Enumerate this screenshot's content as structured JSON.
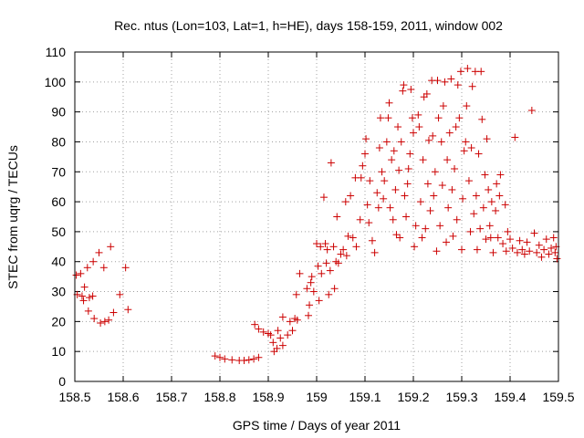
{
  "chart_data": {
    "type": "scatter",
    "title": "Rec. ntus (Lon=103, Lat=1, h=HE), days 158-159, 2011, window 002",
    "xlabel": "GPS time / Days of year 2011",
    "ylabel": "STEC from uqrg / TECUs",
    "xlim": [
      158.5,
      159.5
    ],
    "ylim": [
      0,
      110
    ],
    "xticks": [
      "158.5",
      "158.6",
      "158.7",
      "158.8",
      "158.9",
      "159",
      "159.1",
      "159.2",
      "159.3",
      "159.4",
      "159.5"
    ],
    "yticks": [
      "0",
      "10",
      "20",
      "30",
      "40",
      "50",
      "60",
      "70",
      "80",
      "90",
      "100",
      "110"
    ],
    "grid": true,
    "marker": "+",
    "marker_color": "#cc0000",
    "series": [
      {
        "points": [
          [
            158.503,
            35.5
          ],
          [
            158.505,
            29.0
          ],
          [
            158.512,
            36.0
          ],
          [
            158.515,
            28.5
          ],
          [
            158.518,
            27.0
          ],
          [
            158.52,
            31.5
          ],
          [
            158.526,
            38.0
          ],
          [
            158.528,
            23.5
          ],
          [
            158.53,
            28.0
          ],
          [
            158.537,
            28.5
          ],
          [
            158.538,
            40.0
          ],
          [
            158.54,
            21.0
          ],
          [
            158.55,
            43.0
          ],
          [
            158.553,
            19.5
          ],
          [
            158.56,
            38.0
          ],
          [
            158.562,
            20.0
          ],
          [
            158.57,
            20.5
          ],
          [
            158.574,
            45.0
          ],
          [
            158.58,
            23.0
          ],
          [
            158.593,
            29.0
          ],
          [
            158.605,
            38.0
          ],
          [
            158.61,
            24.0
          ],
          [
            158.79,
            8.5
          ],
          [
            158.8,
            8.0
          ],
          [
            158.81,
            7.5
          ],
          [
            158.825,
            7.2
          ],
          [
            158.84,
            7.0
          ],
          [
            158.85,
            7.0
          ],
          [
            158.86,
            7.2
          ],
          [
            158.87,
            7.5
          ],
          [
            158.88,
            8.0
          ],
          [
            158.872,
            19.0
          ],
          [
            158.88,
            17.5
          ],
          [
            158.89,
            16.5
          ],
          [
            158.9,
            16.0
          ],
          [
            158.905,
            15.5
          ],
          [
            158.91,
            13.0
          ],
          [
            158.912,
            10.0
          ],
          [
            158.918,
            11.0
          ],
          [
            158.92,
            17.0
          ],
          [
            158.925,
            14.5
          ],
          [
            158.93,
            12.0
          ],
          [
            158.93,
            21.5
          ],
          [
            158.94,
            15.5
          ],
          [
            158.945,
            20.0
          ],
          [
            158.95,
            17.0
          ],
          [
            158.955,
            21.0
          ],
          [
            158.958,
            29.0
          ],
          [
            158.96,
            20.5
          ],
          [
            158.965,
            36.0
          ],
          [
            158.98,
            31.0
          ],
          [
            158.983,
            22.0
          ],
          [
            158.985,
            25.5
          ],
          [
            158.988,
            33.0
          ],
          [
            158.99,
            35.0
          ],
          [
            158.994,
            30.0
          ],
          [
            159.0,
            46.0
          ],
          [
            159.003,
            38.5
          ],
          [
            159.005,
            27.0
          ],
          [
            159.008,
            45.0
          ],
          [
            159.01,
            36.0
          ],
          [
            159.015,
            61.5
          ],
          [
            159.018,
            46.0
          ],
          [
            159.02,
            39.5
          ],
          [
            159.022,
            44.0
          ],
          [
            159.025,
            29.0
          ],
          [
            159.028,
            37.0
          ],
          [
            159.03,
            73.0
          ],
          [
            159.035,
            45.0
          ],
          [
            159.037,
            31.0
          ],
          [
            159.04,
            40.0
          ],
          [
            159.042,
            55.0
          ],
          [
            159.045,
            39.5
          ],
          [
            159.05,
            42.5
          ],
          [
            159.055,
            44.0
          ],
          [
            159.06,
            60.0
          ],
          [
            159.062,
            42.0
          ],
          [
            159.065,
            48.5
          ],
          [
            159.07,
            62.0
          ],
          [
            159.075,
            48.0
          ],
          [
            159.08,
            68.0
          ],
          [
            159.082,
            45.0
          ],
          [
            159.09,
            54.0
          ],
          [
            159.092,
            68.0
          ],
          [
            159.095,
            72.0
          ],
          [
            159.1,
            76.0
          ],
          [
            159.102,
            81.0
          ],
          [
            159.105,
            59.0
          ],
          [
            159.108,
            53.0
          ],
          [
            159.11,
            67.0
          ],
          [
            159.115,
            47.0
          ],
          [
            159.12,
            43.0
          ],
          [
            159.125,
            63.0
          ],
          [
            159.128,
            58.0
          ],
          [
            159.13,
            78.0
          ],
          [
            159.132,
            88.0
          ],
          [
            159.135,
            70.0
          ],
          [
            159.138,
            61.0
          ],
          [
            159.14,
            67.0
          ],
          [
            159.145,
            80.0
          ],
          [
            159.148,
            88.0
          ],
          [
            159.15,
            93.0
          ],
          [
            159.152,
            58.0
          ],
          [
            159.155,
            74.0
          ],
          [
            159.158,
            54.0
          ],
          [
            159.16,
            77.0
          ],
          [
            159.163,
            64.0
          ],
          [
            159.165,
            49.0
          ],
          [
            159.168,
            85.0
          ],
          [
            159.17,
            70.5
          ],
          [
            159.172,
            48.0
          ],
          [
            159.175,
            80.0
          ],
          [
            159.178,
            97.0
          ],
          [
            159.18,
            99.0
          ],
          [
            159.182,
            62.0
          ],
          [
            159.185,
            55.0
          ],
          [
            159.188,
            66.0
          ],
          [
            159.19,
            71.0
          ],
          [
            159.193,
            76.0
          ],
          [
            159.195,
            97.5
          ],
          [
            159.198,
            88.0
          ],
          [
            159.2,
            83.0
          ],
          [
            159.202,
            45.0
          ],
          [
            159.205,
            52.0
          ],
          [
            159.21,
            89.0
          ],
          [
            159.212,
            85.0
          ],
          [
            159.215,
            60.0
          ],
          [
            159.218,
            48.0
          ],
          [
            159.22,
            74.0
          ],
          [
            159.222,
            95.0
          ],
          [
            159.225,
            51.0
          ],
          [
            159.228,
            96.0
          ],
          [
            159.23,
            66.0
          ],
          [
            159.232,
            80.5
          ],
          [
            159.235,
            57.0
          ],
          [
            159.238,
            100.5
          ],
          [
            159.24,
            82.0
          ],
          [
            159.242,
            62.0
          ],
          [
            159.245,
            70.0
          ],
          [
            159.248,
            43.5
          ],
          [
            159.25,
            100.5
          ],
          [
            159.252,
            88.0
          ],
          [
            159.255,
            52.0
          ],
          [
            159.258,
            80.0
          ],
          [
            159.26,
            65.5
          ],
          [
            159.262,
            92.0
          ],
          [
            159.265,
            100.0
          ],
          [
            159.268,
            46.5
          ],
          [
            159.27,
            74.0
          ],
          [
            159.272,
            58.0
          ],
          [
            159.275,
            83.0
          ],
          [
            159.278,
            101.0
          ],
          [
            159.28,
            64.0
          ],
          [
            159.282,
            48.5
          ],
          [
            159.285,
            71.0
          ],
          [
            159.288,
            85.0
          ],
          [
            159.29,
            54.0
          ],
          [
            159.292,
            99.0
          ],
          [
            159.295,
            88.0
          ],
          [
            159.298,
            103.5
          ],
          [
            159.3,
            44.0
          ],
          [
            159.302,
            61.0
          ],
          [
            159.305,
            77.0
          ],
          [
            159.308,
            80.0
          ],
          [
            159.31,
            92.0
          ],
          [
            159.312,
            104.5
          ],
          [
            159.315,
            67.0
          ],
          [
            159.318,
            50.0
          ],
          [
            159.32,
            78.0
          ],
          [
            159.322,
            98.5
          ],
          [
            159.325,
            56.0
          ],
          [
            159.328,
            103.5
          ],
          [
            159.33,
            62.0
          ],
          [
            159.332,
            44.0
          ],
          [
            159.335,
            76.0
          ],
          [
            159.338,
            51.0
          ],
          [
            159.34,
            103.5
          ],
          [
            159.342,
            87.5
          ],
          [
            159.345,
            58.0
          ],
          [
            159.348,
            69.0
          ],
          [
            159.35,
            47.5
          ],
          [
            159.352,
            81.0
          ],
          [
            159.355,
            64.0
          ],
          [
            159.358,
            52.0
          ],
          [
            159.36,
            48.0
          ],
          [
            159.362,
            60.0
          ],
          [
            159.365,
            43.0
          ],
          [
            159.37,
            57.0
          ],
          [
            159.372,
            66.0
          ],
          [
            159.375,
            48.0
          ],
          [
            159.378,
            62.0
          ],
          [
            159.38,
            69.0
          ],
          [
            159.385,
            46.0
          ],
          [
            159.39,
            59.0
          ],
          [
            159.392,
            43.5
          ],
          [
            159.395,
            50.0
          ],
          [
            159.4,
            47.5
          ],
          [
            159.405,
            44.5
          ],
          [
            159.41,
            81.5
          ],
          [
            159.415,
            43.0
          ],
          [
            159.42,
            47.0
          ],
          [
            159.425,
            44.0
          ],
          [
            159.43,
            42.5
          ],
          [
            159.435,
            46.5
          ],
          [
            159.44,
            43.5
          ],
          [
            159.445,
            90.5
          ],
          [
            159.45,
            49.5
          ],
          [
            159.455,
            43.0
          ],
          [
            159.46,
            45.5
          ],
          [
            159.465,
            41.5
          ],
          [
            159.47,
            44.0
          ],
          [
            159.475,
            47.5
          ],
          [
            159.48,
            42.5
          ],
          [
            159.485,
            44.5
          ],
          [
            159.49,
            48.0
          ],
          [
            159.493,
            43.0
          ],
          [
            159.495,
            45.0
          ],
          [
            159.497,
            41.0
          ]
        ]
      }
    ]
  }
}
